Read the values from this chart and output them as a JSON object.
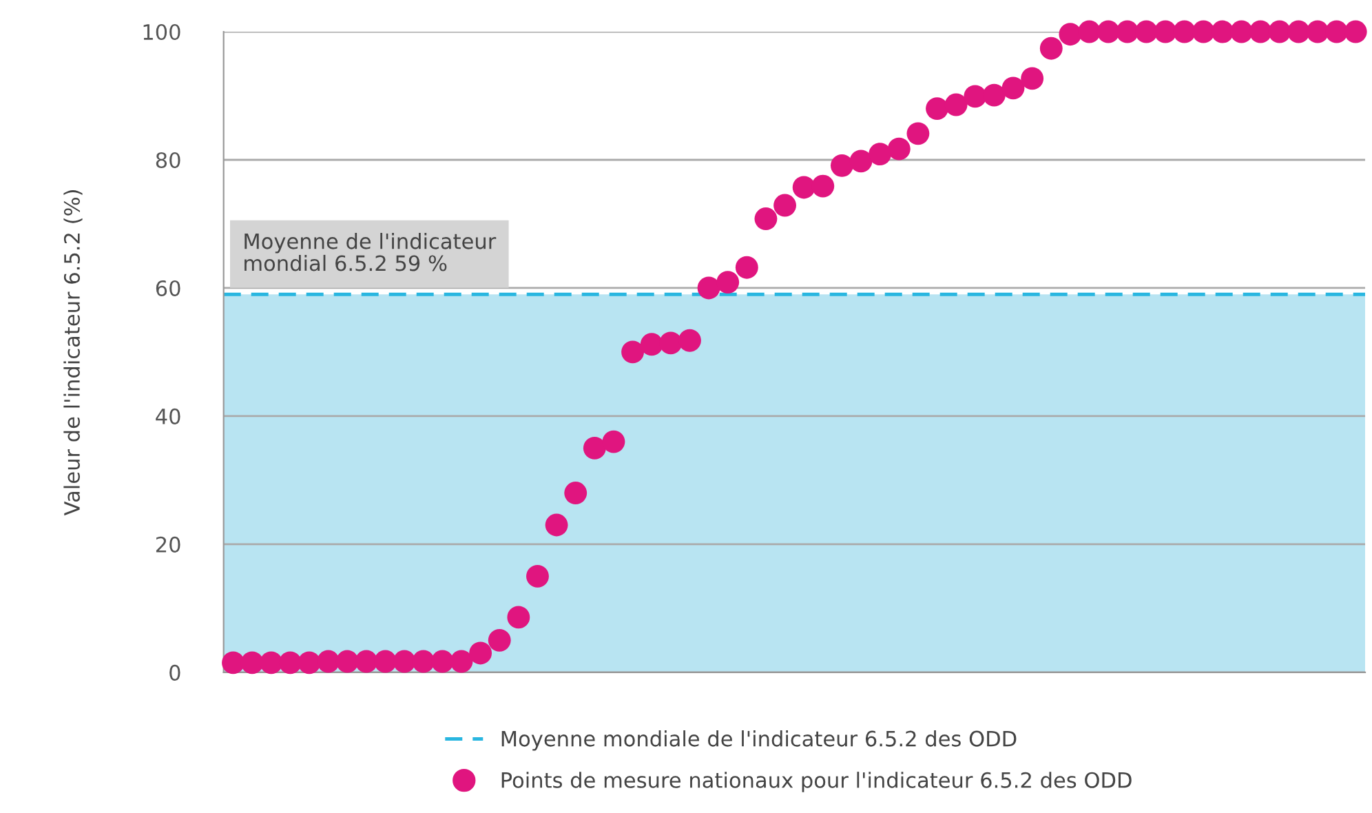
{
  "chart_data": {
    "type": "scatter",
    "ylabel": "Valeur de l'indicateur 6.5.2 (%)",
    "categories": [
      null,
      null,
      null,
      null,
      null,
      null,
      null,
      null,
      null,
      null,
      null,
      null,
      null,
      null,
      null,
      null,
      null,
      null,
      null,
      null,
      null,
      null,
      null,
      null,
      null,
      null,
      null,
      null,
      null,
      null,
      null,
      null,
      null,
      null,
      null,
      null,
      null,
      null,
      null,
      null,
      null,
      null,
      null,
      null,
      null,
      null,
      null,
      null,
      null,
      null,
      null,
      null,
      null,
      null,
      null,
      null,
      null,
      null,
      null,
      null
    ],
    "series": [
      {
        "name": "Points de mesure nationaux pour l'indicateur 6.5.2 des ODD",
        "color": "#e0157f",
        "values": [
          1.5,
          1.5,
          1.5,
          1.5,
          1.5,
          1.7,
          1.7,
          1.7,
          1.7,
          1.7,
          1.7,
          1.7,
          1.7,
          3,
          5,
          8.6,
          15,
          23,
          28,
          35,
          36,
          50,
          51.2,
          51.4,
          51.8,
          60,
          60.9,
          63.2,
          70.8,
          72.9,
          75.7,
          75.9,
          79.1,
          79.8,
          80.9,
          81.7,
          84.1,
          88,
          88.6,
          89.9,
          90.1,
          91.2,
          92.7,
          97.4,
          99.6,
          100,
          100,
          100,
          100,
          100,
          100,
          100,
          100,
          100,
          100,
          100,
          100,
          100,
          100,
          100
        ]
      }
    ],
    "ylim": [
      0,
      100
    ],
    "yticks": [
      0,
      20,
      40,
      60,
      80,
      100
    ],
    "grid": "y",
    "marker": "circle",
    "legend": "bottom",
    "ref_lines": [
      {
        "axis": "y",
        "value": 59,
        "label": "Moyenne mondiale de l'indicateur 6.5.2 des ODD",
        "color": "#29b6e0",
        "line_style": "dashed"
      }
    ],
    "bands": [
      {
        "axis": "y",
        "from": 0,
        "to": 59,
        "color": "#b8e4f2"
      }
    ],
    "annotations": [
      {
        "text": "Moyenne de l'indicateur\nmondial 6.5.2 59 %",
        "y": 59
      }
    ]
  }
}
